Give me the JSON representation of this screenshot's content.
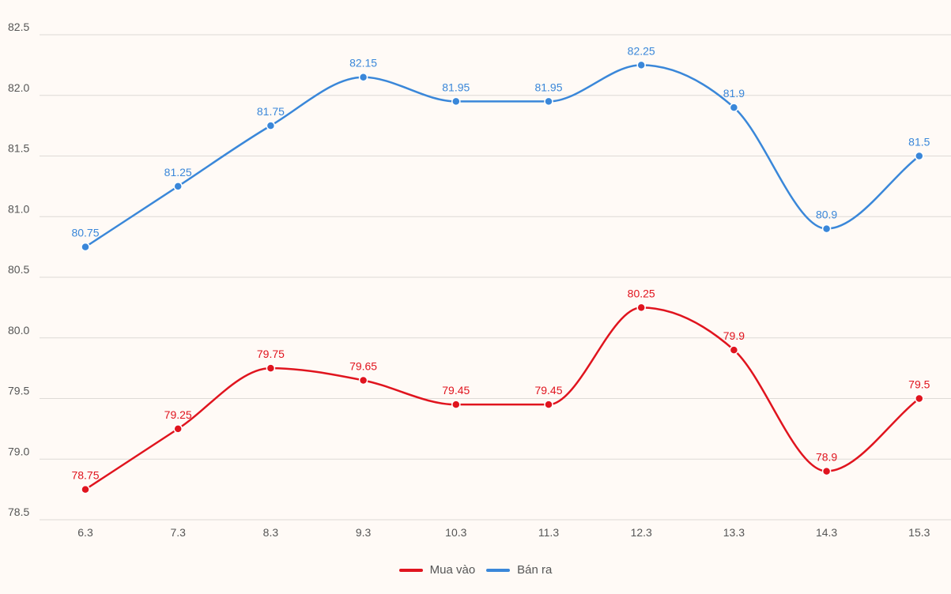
{
  "chart_data": {
    "type": "line",
    "title": "",
    "xlabel": "",
    "ylabel": "",
    "categories": [
      "6.3",
      "7.3",
      "8.3",
      "9.3",
      "10.3",
      "11.3",
      "12.3",
      "13.3",
      "14.3",
      "15.3"
    ],
    "y_ticks": [
      "82.5",
      "82.0",
      "81.5",
      "81.0",
      "80.5",
      "80.0",
      "79.5",
      "79.0",
      "78.5"
    ],
    "ylim": [
      78.5,
      82.5
    ],
    "grid": true,
    "legend_position": "bottom",
    "series": [
      {
        "name": "Mua vào",
        "color": "#e0141e",
        "values": [
          78.75,
          79.25,
          79.75,
          79.65,
          79.45,
          79.45,
          80.25,
          79.9,
          78.9,
          79.5
        ],
        "labels": [
          "78.75",
          "79.25",
          "79.75",
          "79.65",
          "79.45",
          "79.45",
          "80.25",
          "79.9",
          "78.9",
          "79.5"
        ]
      },
      {
        "name": "Bán ra",
        "color": "#3a87d9",
        "values": [
          80.75,
          81.25,
          81.75,
          82.15,
          81.95,
          81.95,
          82.25,
          81.9,
          80.9,
          81.5
        ],
        "labels": [
          "80.75",
          "81.25",
          "81.75",
          "82.15",
          "81.95",
          "81.95",
          "82.25",
          "81.9",
          "80.9",
          "81.5"
        ]
      }
    ]
  }
}
